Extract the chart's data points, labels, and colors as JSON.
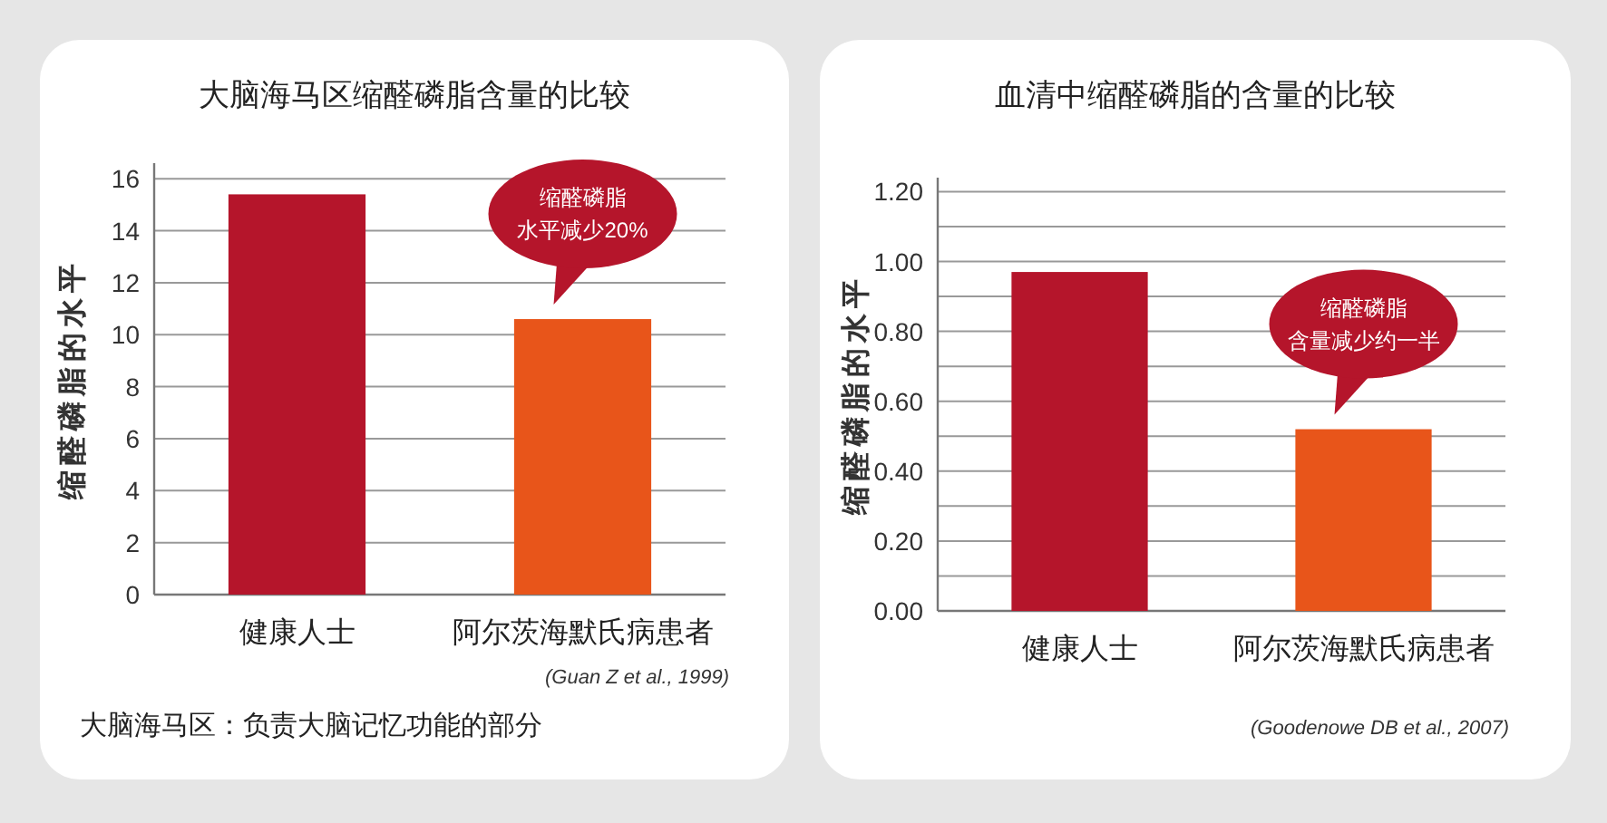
{
  "chart_data": [
    {
      "type": "bar",
      "title": "大脑海马区缩醛磷脂含量的比较",
      "ylabel": "缩醛磷脂的水平",
      "categories": [
        "健康人士",
        "阿尔茨海默氏病患者"
      ],
      "values": [
        15.4,
        10.6
      ],
      "colors": [
        "#b5152b",
        "#e8551a"
      ],
      "ylim": [
        0,
        16.6
      ],
      "yticks": [
        0,
        2,
        4,
        6,
        8,
        10,
        12,
        14,
        16
      ],
      "grid": "y",
      "annotations": [
        "缩醛磷脂水平减少20%",
        "(Guan Z et al., 1999)",
        "大脑海马区：负责大脑记忆功能的部分"
      ]
    },
    {
      "type": "bar",
      "title": "血清中缩醛磷脂的含量的比较",
      "ylabel": "缩醛磷脂的水平",
      "categories": [
        "健康人士",
        "阿尔茨海默氏病患者"
      ],
      "values": [
        0.97,
        0.52
      ],
      "colors": [
        "#b5152b",
        "#e8551a"
      ],
      "ylim": [
        0,
        1.24
      ],
      "yticks": [
        {
          "value": 0,
          "label": "0.00"
        },
        {
          "value": 0.1,
          "label": null
        },
        {
          "value": 0.2,
          "label": "0.20"
        },
        {
          "value": 0.3,
          "label": null
        },
        {
          "value": 0.4,
          "label": "0.40"
        },
        {
          "value": 0.5,
          "label": null
        },
        {
          "value": 0.6,
          "label": "0.60"
        },
        {
          "value": 0.7,
          "label": null
        },
        {
          "value": 0.8,
          "label": "0.80"
        },
        {
          "value": 0.9,
          "label": null
        },
        {
          "value": 1.0,
          "label": "1.00"
        },
        {
          "value": 1.1,
          "label": null
        },
        {
          "value": 1.2,
          "label": "1.20"
        }
      ],
      "grid": "y",
      "annotations": [
        "缩醛磷脂含量减少约一半",
        "(Goodenowe DB et al., 2007)"
      ]
    }
  ]
}
